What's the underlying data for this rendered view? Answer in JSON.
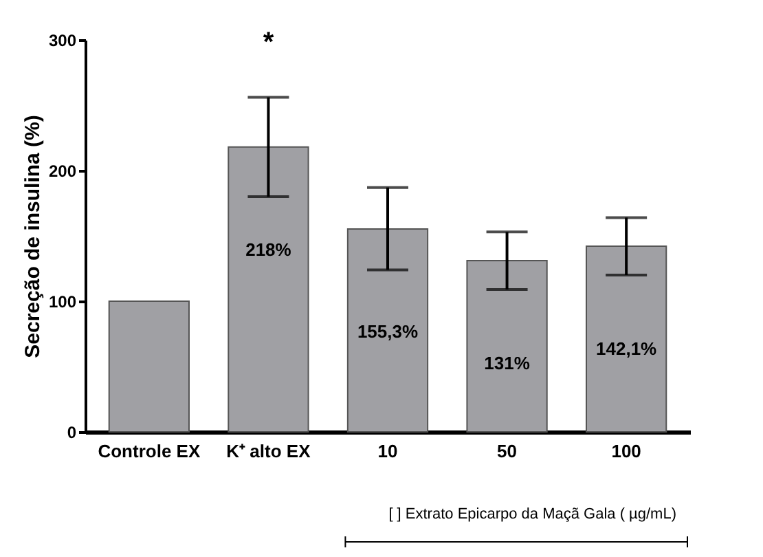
{
  "chart_data": {
    "type": "bar",
    "ylabel": "Secreção de insulina (%)",
    "categories": [
      "Controle EX",
      "K⁺ alto EX",
      "10",
      "50",
      "100"
    ],
    "values": [
      100,
      218,
      155.3,
      131,
      142.1
    ],
    "errors": [
      null,
      [
        180,
        256
      ],
      [
        124,
        187
      ],
      [
        109,
        153
      ],
      [
        120,
        164
      ]
    ],
    "value_labels": [
      null,
      "218%",
      "155,3%",
      "131%",
      "142,1%"
    ],
    "color": "#a0a0a4",
    "ylim": [
      0,
      300
    ],
    "yticks": [
      0,
      100,
      200,
      300
    ],
    "grid": false,
    "annotations": [
      "*",
      "[ ] Extrato Epicarpo da Maçã Gala ( µg/mL)"
    ]
  }
}
